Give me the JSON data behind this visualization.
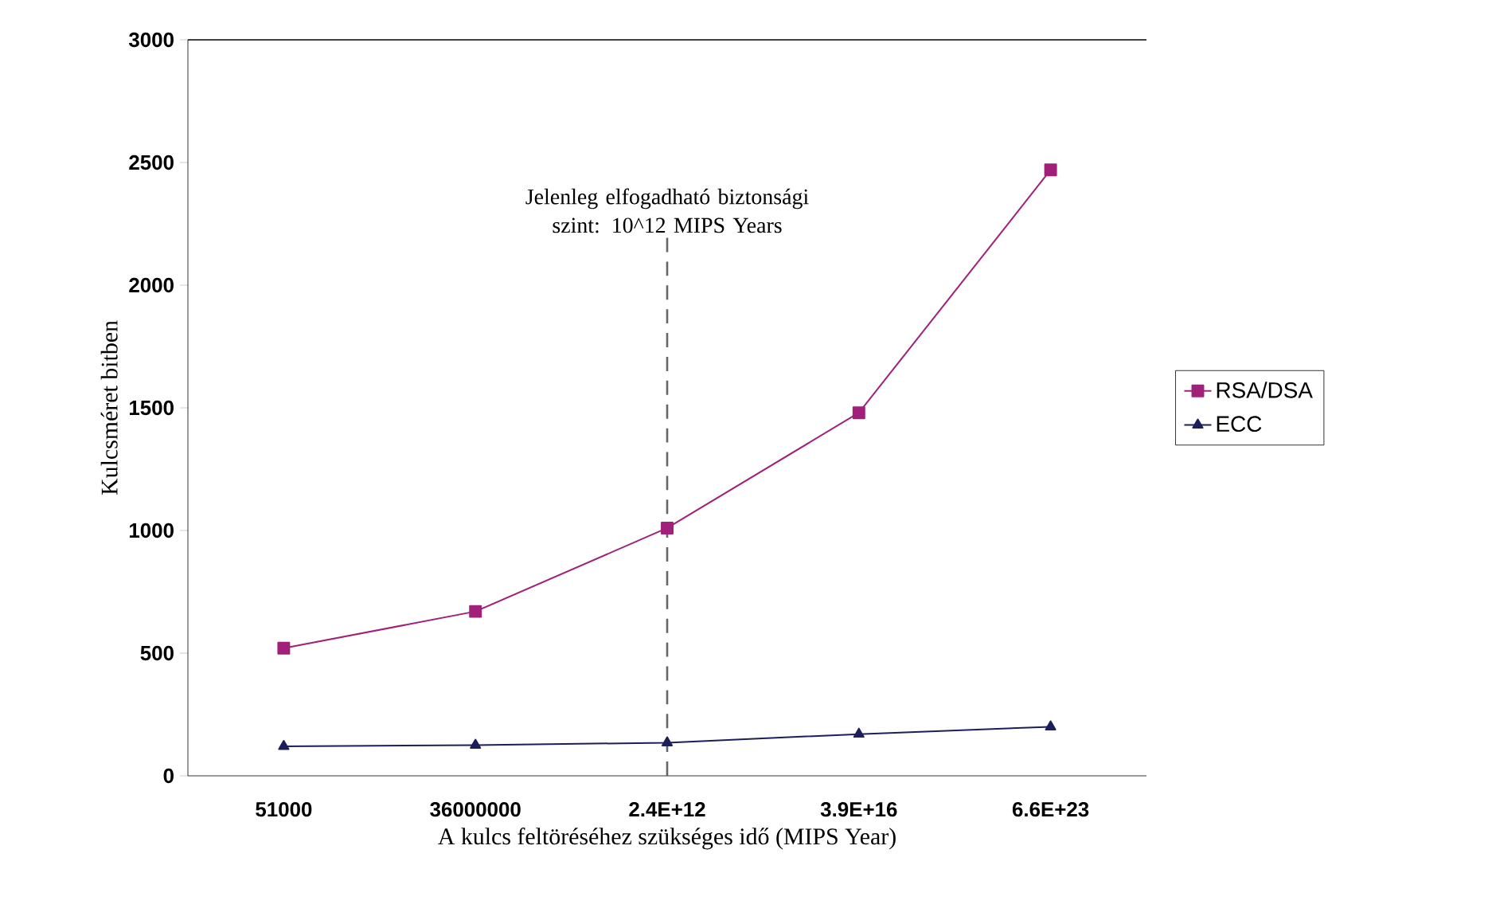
{
  "chart_data": {
    "type": "line",
    "xlabel": "A kulcs feltöréséhez szükséges idő (MIPS Year)",
    "ylabel": "Kulcsméret bitben",
    "categories": [
      "51000",
      "36000000",
      "2.4E+12",
      "3.9E+16",
      "6.6E+23"
    ],
    "series": [
      {
        "name": "RSA/DSA",
        "color": "#a0207a",
        "marker": "square",
        "values": [
          520,
          670,
          1010,
          1480,
          2470
        ]
      },
      {
        "name": "ECC",
        "color": "#1c1f5a",
        "marker": "triangle",
        "values": [
          120,
          125,
          135,
          170,
          200
        ]
      }
    ],
    "ylim": [
      0,
      3000
    ],
    "yticks": [
      0,
      500,
      1000,
      1500,
      2000,
      2500,
      3000
    ],
    "ref_lines": [
      {
        "axis": "x",
        "value": "2.4E+12",
        "label": "Jelenleg elfogadható biztonsági szint: 10^12 MIPS Years",
        "color": "#666666",
        "line_style": "dashed"
      }
    ],
    "legend": "right",
    "grid": false
  }
}
